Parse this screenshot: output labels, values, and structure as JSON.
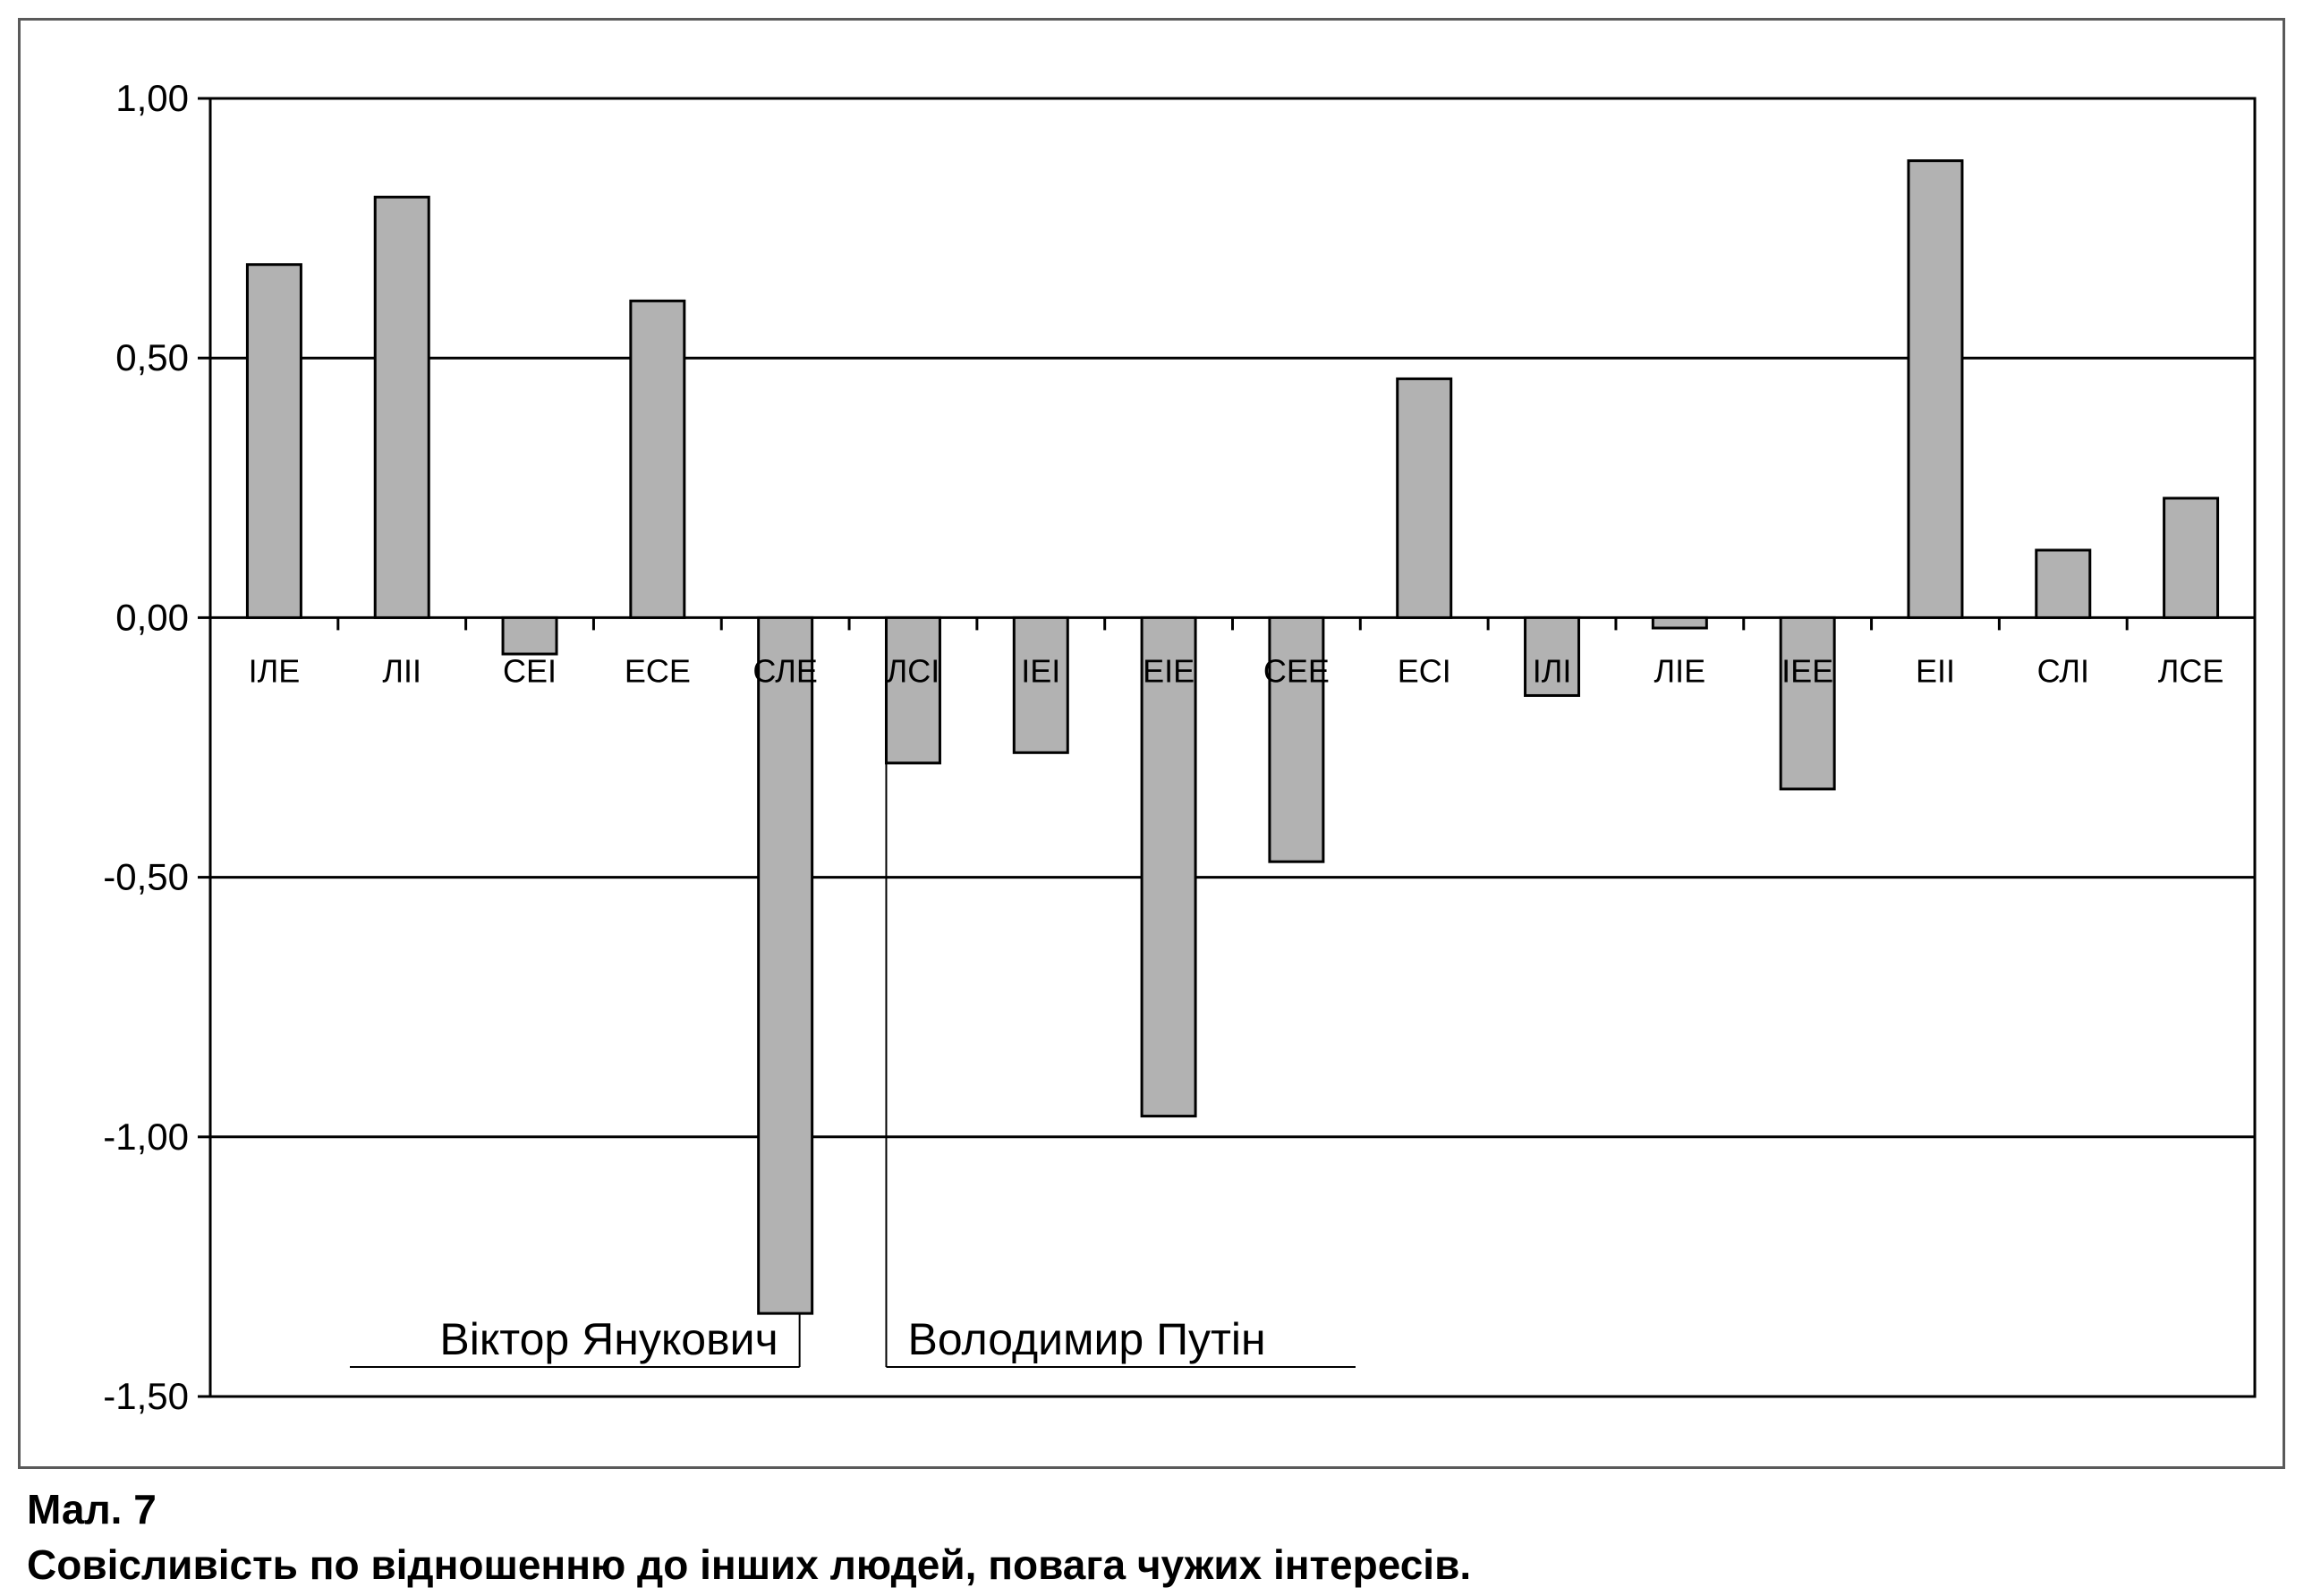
{
  "chart_data": {
    "type": "bar",
    "categories": [
      "ІЛЕ",
      "ЛІІ",
      "СЕІ",
      "ЕСЕ",
      "СЛЕ",
      "ЛСІ",
      "ІЕІ",
      "ЕІЕ",
      "СЕЕ",
      "ЕСІ",
      "ІЛІ",
      "ЛІЕ",
      "ІЕЕ",
      "ЕІІ",
      "СЛІ",
      "ЛСЕ"
    ],
    "values": [
      0.68,
      0.81,
      -0.07,
      0.61,
      -1.34,
      -0.28,
      -0.26,
      -0.96,
      -0.47,
      0.46,
      -0.15,
      -0.02,
      -0.33,
      0.88,
      0.13,
      0.23
    ],
    "ylim": [
      -1.5,
      1.0
    ],
    "yticks": [
      1.0,
      0.5,
      0.0,
      -0.5,
      -1.0,
      -1.5
    ],
    "ytick_labels": [
      "1,00",
      "0,50",
      "0,00",
      "-0,50",
      "-1,00",
      "-1,50"
    ],
    "grid": "horizontal",
    "bar_color": "#b2b2b2",
    "annotations": [
      {
        "text": "Віктор Янукович",
        "category": "СЛЕ"
      },
      {
        "text": "Володимир Путін",
        "category": "ЛСІ"
      }
    ]
  },
  "caption": {
    "number": "Мал. 7",
    "text": "Совісливість по відношенню до інших людей, повага чужих інтересів."
  }
}
